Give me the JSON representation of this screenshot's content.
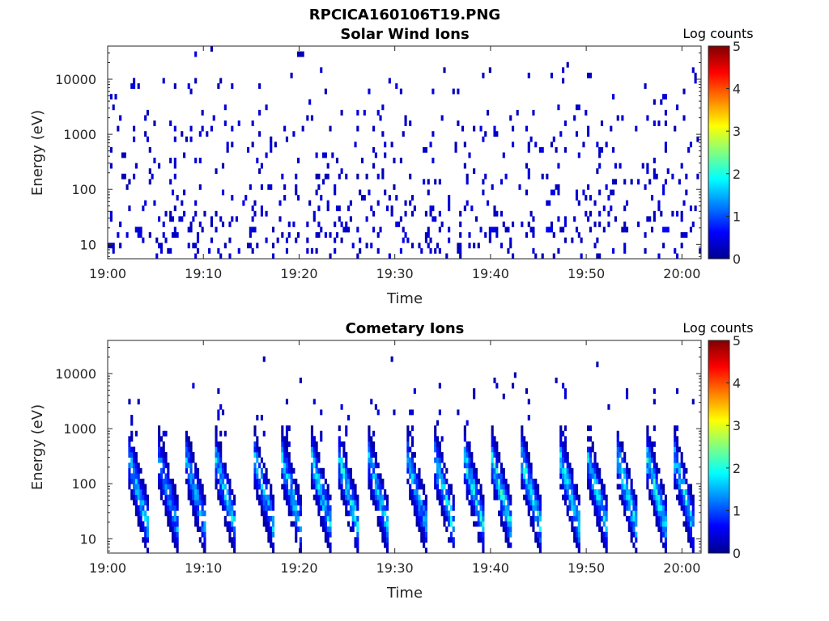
{
  "figure_title": "RPCICA160106T19.PNG",
  "colors": {
    "colormap": [
      "#00008f",
      "#0000ff",
      "#0080ff",
      "#00ffff",
      "#80ff80",
      "#ffff00",
      "#ff8000",
      "#ff0000",
      "#800000"
    ],
    "axes": "#262626"
  },
  "chart_data": [
    {
      "type": "heatmap",
      "title": "Solar Wind Ions",
      "xlabel": "Time",
      "ylabel": "Energy (eV)",
      "x_scale": "time",
      "xlim": [
        "19:00",
        "20:02"
      ],
      "x_ticks": [
        "19:00",
        "19:10",
        "19:20",
        "19:30",
        "19:40",
        "19:50",
        "20:00"
      ],
      "y_scale": "log",
      "ylim": [
        5.5,
        40000
      ],
      "y_ticks": [
        10,
        100,
        1000,
        10000
      ],
      "y_tick_labels": [
        "10",
        "100",
        "1000",
        "10000"
      ],
      "colorbar": {
        "label": "Log counts",
        "range": [
          0,
          5
        ],
        "ticks": [
          "0",
          "1",
          "2",
          "3",
          "4",
          "5"
        ]
      },
      "description_of_values": "sparse single counts (log counts ~0.1-0.5) scattered from 10 eV to 10000 eV; denser near 10-100 eV",
      "sample_points": [
        {
          "time": "19:00",
          "energy_eV": 10,
          "log_counts": 0.3
        },
        {
          "time": "19:03",
          "energy_eV": 20,
          "log_counts": 0.4
        },
        {
          "time": "19:15",
          "energy_eV": 20,
          "log_counts": 0.4
        },
        {
          "time": "19:20",
          "energy_eV": 30000,
          "log_counts": 0.2
        },
        {
          "time": "19:40",
          "energy_eV": 20,
          "log_counts": 0.5
        },
        {
          "time": "19:46",
          "energy_eV": 20,
          "log_counts": 0.6
        },
        {
          "time": "19:58",
          "energy_eV": 20,
          "log_counts": 0.6
        }
      ]
    },
    {
      "type": "heatmap",
      "title": "Cometary Ions",
      "xlabel": "Time",
      "ylabel": "Energy (eV)",
      "x_scale": "time",
      "xlim": [
        "19:00",
        "20:02"
      ],
      "x_ticks": [
        "19:00",
        "19:10",
        "19:20",
        "19:30",
        "19:40",
        "19:50",
        "20:00"
      ],
      "y_scale": "log",
      "ylim": [
        5.5,
        40000
      ],
      "y_ticks": [
        10,
        100,
        1000,
        10000
      ],
      "y_tick_labels": [
        "10",
        "100",
        "1000",
        "10000"
      ],
      "colorbar": {
        "label": "Log counts",
        "range": [
          0,
          5
        ],
        "ticks": [
          "0",
          "1",
          "2",
          "3",
          "4",
          "5"
        ]
      },
      "description_of_values": "periodic bursts roughly every 3.2 minutes sweeping from ~400 eV down to ~15 eV, peak log counts ~2",
      "bursts": [
        {
          "start_time": "19:02",
          "peak_log_counts": 1.8
        },
        {
          "start_time": "19:05",
          "peak_log_counts": 1.6
        },
        {
          "start_time": "19:08",
          "peak_log_counts": 1.7
        },
        {
          "start_time": "19:11",
          "peak_log_counts": 1.8
        },
        {
          "start_time": "19:15",
          "peak_log_counts": 1.7
        },
        {
          "start_time": "19:18",
          "peak_log_counts": 1.8
        },
        {
          "start_time": "19:21",
          "peak_log_counts": 1.9
        },
        {
          "start_time": "19:24",
          "peak_log_counts": 2.0
        },
        {
          "start_time": "19:27",
          "peak_log_counts": 1.8
        },
        {
          "start_time": "19:31",
          "peak_log_counts": 1.7
        },
        {
          "start_time": "19:34",
          "peak_log_counts": 2.0
        },
        {
          "start_time": "19:37",
          "peak_log_counts": 2.0
        },
        {
          "start_time": "19:40",
          "peak_log_counts": 2.1
        },
        {
          "start_time": "19:43",
          "peak_log_counts": 2.1
        },
        {
          "start_time": "19:47",
          "peak_log_counts": 2.0
        },
        {
          "start_time": "19:50",
          "peak_log_counts": 1.9
        },
        {
          "start_time": "19:53",
          "peak_log_counts": 2.0
        },
        {
          "start_time": "19:56",
          "peak_log_counts": 2.1
        },
        {
          "start_time": "19:59",
          "peak_log_counts": 1.9
        }
      ]
    }
  ]
}
